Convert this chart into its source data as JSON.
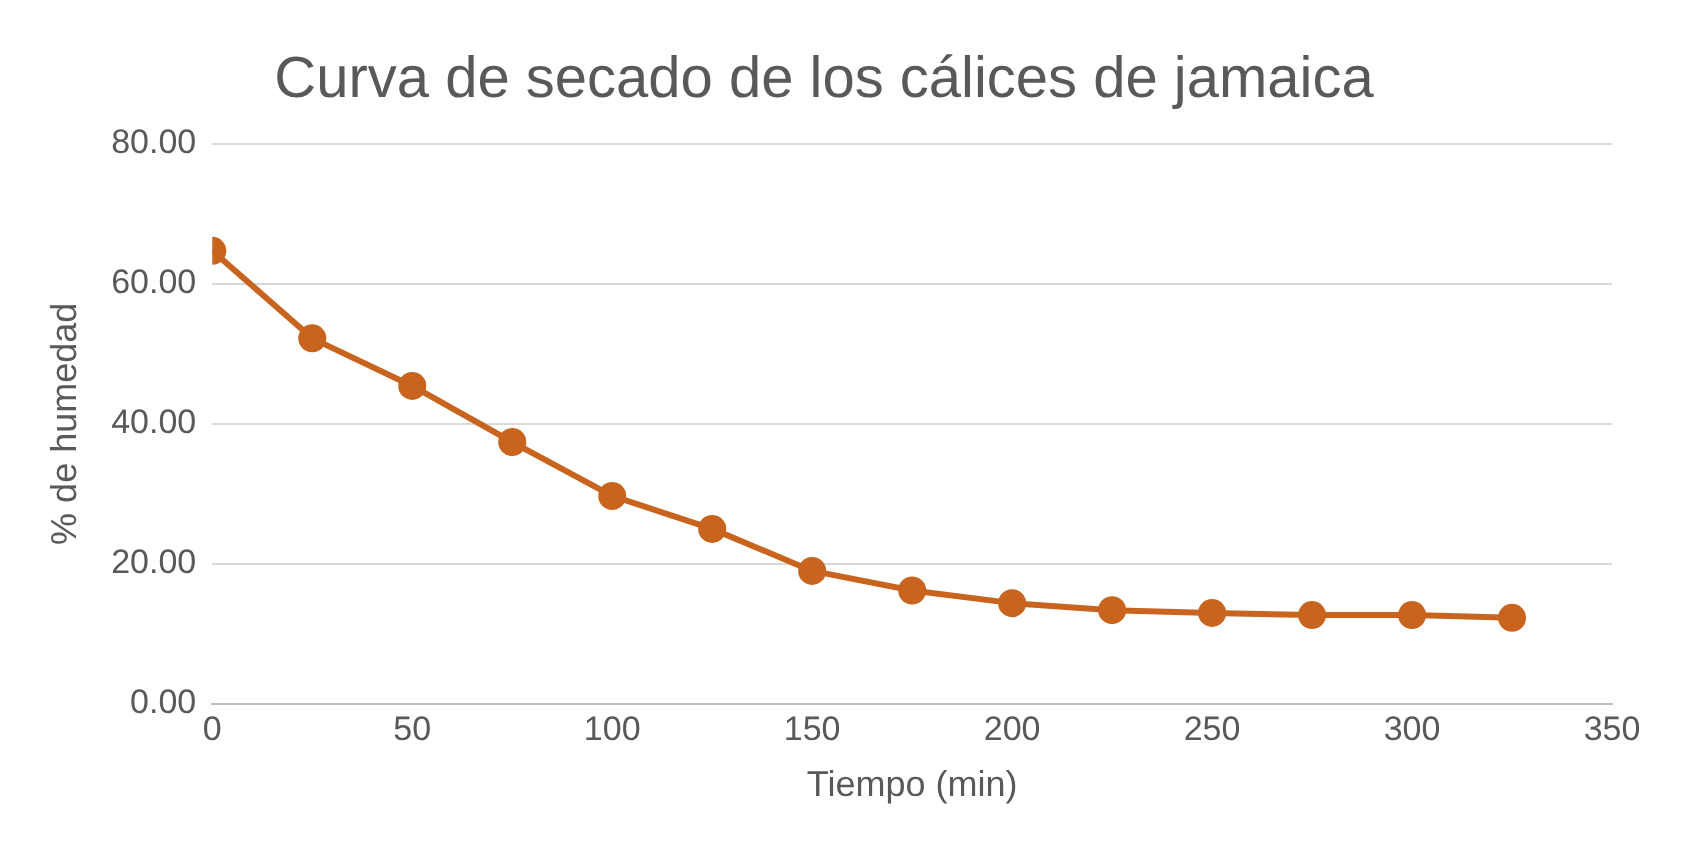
{
  "chart_data": {
    "type": "line",
    "title": "Curva de secado de los cálices de jamaica",
    "xlabel": "Tiempo (min)",
    "ylabel": "% de humedad",
    "x": [
      0,
      25,
      50,
      75,
      100,
      125,
      150,
      175,
      200,
      225,
      250,
      275,
      300,
      325
    ],
    "series": [
      {
        "color": "#c8641e",
        "values": [
          64.7,
          52.2,
          45.4,
          37.4,
          29.7,
          25.0,
          19.0,
          16.2,
          14.4,
          13.4,
          13.0,
          12.7,
          12.7,
          12.3
        ]
      }
    ],
    "xlim": [
      0,
      350
    ],
    "xticks": [
      0,
      50,
      100,
      150,
      200,
      250,
      300,
      350
    ],
    "ylim": [
      0,
      80
    ],
    "yticks": [
      {
        "value": 0,
        "label": "0.00"
      },
      {
        "value": 20,
        "label": "20.00"
      },
      {
        "value": 40,
        "label": "40.00"
      },
      {
        "value": 60,
        "label": "60.00"
      },
      {
        "value": 80,
        "label": "80.00"
      }
    ],
    "grid": "y",
    "marker": "circle",
    "line_style": "solid",
    "legend": false
  }
}
